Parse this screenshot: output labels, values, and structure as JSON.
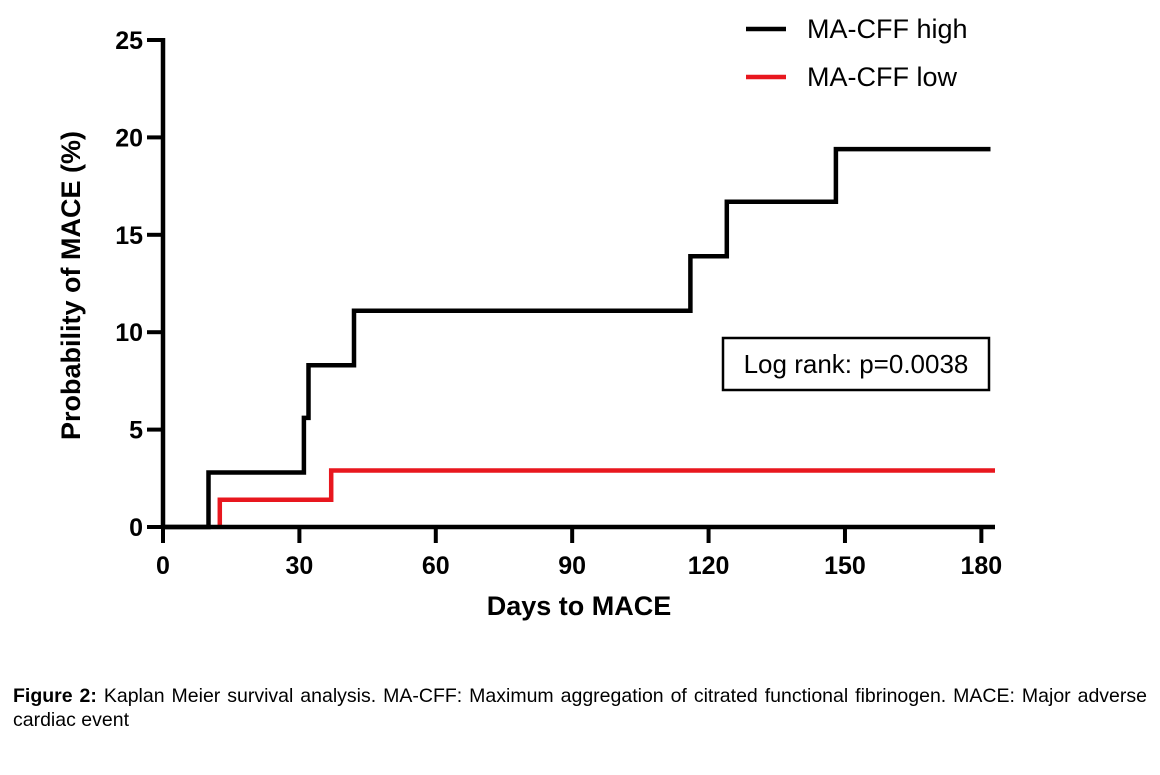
{
  "chart_data": {
    "type": "line",
    "step": true,
    "xlabel": "Days to MACE",
    "ylabel": "Probability of MACE (%)",
    "xlim": [
      0,
      183
    ],
    "ylim": [
      0,
      25
    ],
    "xticks": [
      0,
      30,
      60,
      90,
      120,
      150,
      180
    ],
    "yticks": [
      0,
      5,
      10,
      15,
      20,
      25
    ],
    "grid": false,
    "legend_position": "top-right",
    "series": [
      {
        "name": "MA-CFF high",
        "color": "#000000",
        "x": [
          0,
          10,
          10,
          31,
          31,
          32,
          32,
          42,
          42,
          116,
          116,
          124,
          124,
          148,
          148,
          182
        ],
        "y": [
          0,
          0,
          2.8,
          2.8,
          5.6,
          5.6,
          8.3,
          8.3,
          11.1,
          11.1,
          13.9,
          13.9,
          16.7,
          16.7,
          19.4,
          19.4
        ]
      },
      {
        "name": "MA-CFF low",
        "color": "#e8171e",
        "x": [
          12.5,
          12.5,
          37,
          37,
          183
        ],
        "y": [
          0,
          1.4,
          1.4,
          2.9,
          2.9
        ]
      }
    ],
    "annotations": [
      {
        "text": "Log rank: p=0.0038"
      }
    ]
  },
  "caption": {
    "label": "Figure 2:",
    "text": " Kaplan Meier survival analysis. MA-CFF: Maximum aggregation of citrated functional fibrinogen. MACE: Major adverse cardiac event"
  }
}
